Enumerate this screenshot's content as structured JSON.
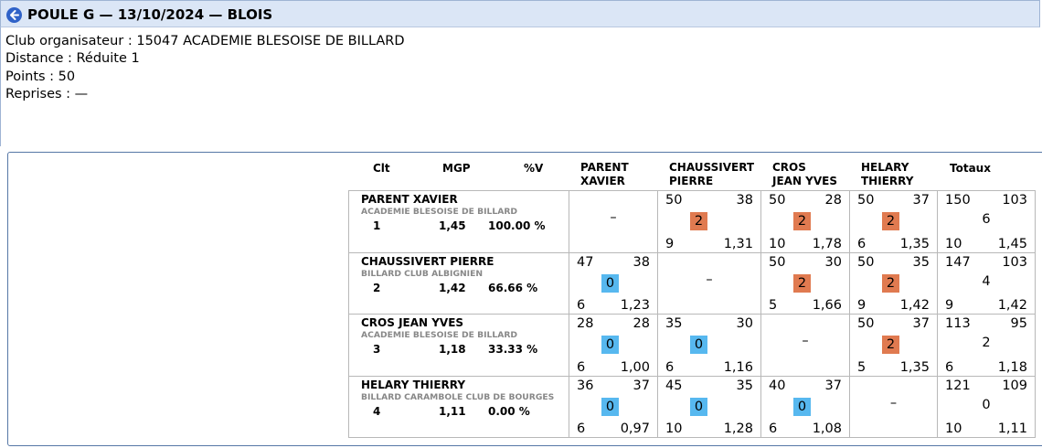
{
  "header": {
    "title": "POULE G — 13/10/2024 — BLOIS",
    "icon": "back-arrow-icon"
  },
  "info": {
    "organizer": "Club organisateur : 15047 ACADEMIE BLESOISE DE BILLARD",
    "distance": "Distance : Réduite 1",
    "points": "Points : 50",
    "reprises": "Reprises : —"
  },
  "columns": {
    "clt": "Clt",
    "mgp": "MGP",
    "pv": "%V",
    "opponents": [
      [
        "PARENT",
        "XAVIER"
      ],
      [
        "CHAUSSIVERT",
        "PIERRE"
      ],
      [
        "CROS",
        "JEAN YVES"
      ],
      [
        "HELARY",
        "THIERRY"
      ]
    ],
    "totals": "Totaux"
  },
  "colors": {
    "win": "#e07a50",
    "loss": "#57b8ef"
  },
  "players": [
    {
      "name": "PARENT XAVIER",
      "club": "ACADEMIE BLESOISE DE BILLARD",
      "rank": "1",
      "mgp": "1,45",
      "pct": "100.00 %",
      "matches": [
        null,
        {
          "points": "50",
          "opp_points": "38",
          "mp": "2",
          "reprises": "9",
          "avg": "1,31",
          "result": "win"
        },
        {
          "points": "50",
          "opp_points": "28",
          "mp": "2",
          "reprises": "10",
          "avg": "1,78",
          "result": "win"
        },
        {
          "points": "50",
          "opp_points": "37",
          "mp": "2",
          "reprises": "6",
          "avg": "1,35",
          "result": "win"
        }
      ],
      "totals": {
        "points": "150",
        "opp_points": "103",
        "mp": "6",
        "reprises": "10",
        "avg": "1,45"
      }
    },
    {
      "name": "CHAUSSIVERT PIERRE",
      "club": "BILLARD CLUB ALBIGNIEN",
      "rank": "2",
      "mgp": "1,42",
      "pct": "66.66 %",
      "matches": [
        {
          "points": "47",
          "opp_points": "38",
          "mp": "0",
          "reprises": "6",
          "avg": "1,23",
          "result": "loss"
        },
        null,
        {
          "points": "50",
          "opp_points": "30",
          "mp": "2",
          "reprises": "5",
          "avg": "1,66",
          "result": "win"
        },
        {
          "points": "50",
          "opp_points": "35",
          "mp": "2",
          "reprises": "9",
          "avg": "1,42",
          "result": "win"
        }
      ],
      "totals": {
        "points": "147",
        "opp_points": "103",
        "mp": "4",
        "reprises": "9",
        "avg": "1,42"
      }
    },
    {
      "name": "CROS JEAN YVES",
      "club": "ACADEMIE BLESOISE DE BILLARD",
      "rank": "3",
      "mgp": "1,18",
      "pct": "33.33 %",
      "matches": [
        {
          "points": "28",
          "opp_points": "28",
          "mp": "0",
          "reprises": "6",
          "avg": "1,00",
          "result": "loss"
        },
        {
          "points": "35",
          "opp_points": "30",
          "mp": "0",
          "reprises": "6",
          "avg": "1,16",
          "result": "loss"
        },
        null,
        {
          "points": "50",
          "opp_points": "37",
          "mp": "2",
          "reprises": "5",
          "avg": "1,35",
          "result": "win"
        }
      ],
      "totals": {
        "points": "113",
        "opp_points": "95",
        "mp": "2",
        "reprises": "6",
        "avg": "1,18"
      }
    },
    {
      "name": "HELARY THIERRY",
      "club": "BILLARD CARAMBOLE CLUB DE BOURGES",
      "rank": "4",
      "mgp": "1,11",
      "pct": "0.00 %",
      "matches": [
        {
          "points": "36",
          "opp_points": "37",
          "mp": "0",
          "reprises": "6",
          "avg": "0,97",
          "result": "loss"
        },
        {
          "points": "45",
          "opp_points": "35",
          "mp": "0",
          "reprises": "10",
          "avg": "1,28",
          "result": "loss"
        },
        {
          "points": "40",
          "opp_points": "37",
          "mp": "0",
          "reprises": "6",
          "avg": "1,08",
          "result": "loss"
        },
        null
      ],
      "totals": {
        "points": "121",
        "opp_points": "109",
        "mp": "0",
        "reprises": "10",
        "avg": "1,11"
      }
    }
  ],
  "empty_cell": "–"
}
